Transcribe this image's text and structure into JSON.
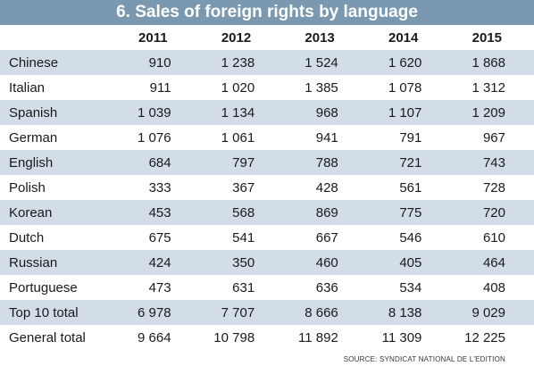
{
  "title": "6. Sales of foreign rights by language",
  "source": "SOURCE: SYNDICAT NATIONAL DE L'EDITION",
  "colors": {
    "title_bg": "#7a98b0",
    "stripe": "#d2dde7"
  },
  "chart_data": {
    "type": "table",
    "title": "6. Sales of foreign rights by language",
    "columns": [
      "2011",
      "2012",
      "2013",
      "2014",
      "2015"
    ],
    "rows": [
      {
        "label": "Chinese",
        "values": [
          "910",
          "1 238",
          "1 524",
          "1 620",
          "1 868"
        ]
      },
      {
        "label": "Italian",
        "values": [
          "911",
          "1 020",
          "1 385",
          "1 078",
          "1 312"
        ]
      },
      {
        "label": "Spanish",
        "values": [
          "1 039",
          "1 134",
          "968",
          "1 107",
          "1 209"
        ]
      },
      {
        "label": "German",
        "values": [
          "1 076",
          "1 061",
          "941",
          "791",
          "967"
        ]
      },
      {
        "label": "English",
        "values": [
          "684",
          "797",
          "788",
          "721",
          "743"
        ]
      },
      {
        "label": "Polish",
        "values": [
          "333",
          "367",
          "428",
          "561",
          "728"
        ]
      },
      {
        "label": "Korean",
        "values": [
          "453",
          "568",
          "869",
          "775",
          "720"
        ]
      },
      {
        "label": "Dutch",
        "values": [
          "675",
          "541",
          "667",
          "546",
          "610"
        ]
      },
      {
        "label": "Russian",
        "values": [
          "424",
          "350",
          "460",
          "405",
          "464"
        ]
      },
      {
        "label": "Portuguese",
        "values": [
          "473",
          "631",
          "636",
          "534",
          "408"
        ]
      },
      {
        "label": "Top 10 total",
        "values": [
          "6 978",
          "7 707",
          "8 666",
          "8 138",
          "9 029"
        ]
      },
      {
        "label": "General total",
        "values": [
          "9 664",
          "10 798",
          "11 892",
          "11 309",
          "12 225"
        ]
      }
    ]
  }
}
